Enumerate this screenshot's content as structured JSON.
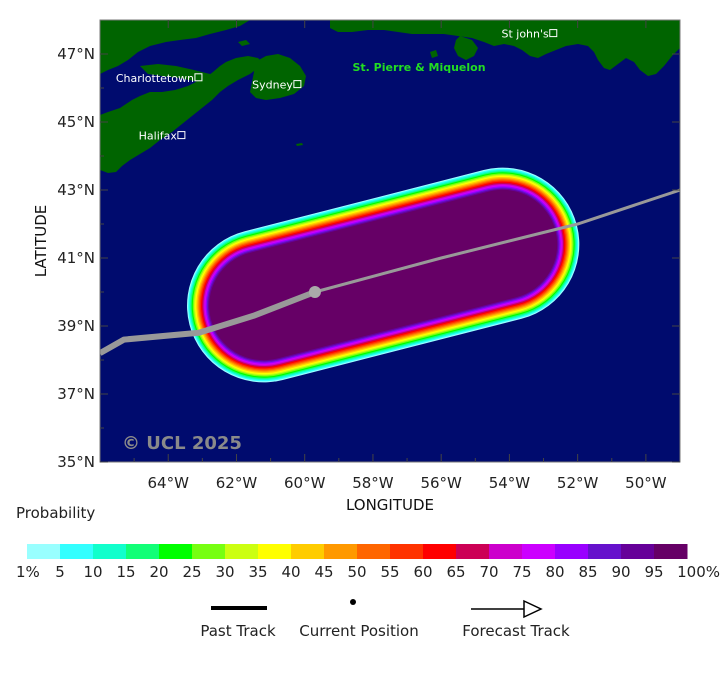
{
  "map": {
    "lon_range": [
      -66.0,
      -49.0
    ],
    "lat_range": [
      35.0,
      48.0
    ],
    "xlabel": "LONGITUDE",
    "ylabel": "LATITUDE",
    "watermark": "© UCL 2025",
    "ocean_color": "#000b6e",
    "land_color": "#006400",
    "lon_ticks": [
      {
        "value": -64,
        "label": "64°W"
      },
      {
        "value": -62,
        "label": "62°W"
      },
      {
        "value": -60,
        "label": "60°W"
      },
      {
        "value": -58,
        "label": "58°W"
      },
      {
        "value": -56,
        "label": "56°W"
      },
      {
        "value": -54,
        "label": "54°W"
      },
      {
        "value": -52,
        "label": "52°W"
      },
      {
        "value": -50,
        "label": "50°W"
      }
    ],
    "lat_ticks": [
      {
        "value": 35,
        "label": "35°N"
      },
      {
        "value": 37,
        "label": "37°N"
      },
      {
        "value": 39,
        "label": "39°N"
      },
      {
        "value": 41,
        "label": "41°N"
      },
      {
        "value": 43,
        "label": "43°N"
      },
      {
        "value": 45,
        "label": "45°N"
      },
      {
        "value": 47,
        "label": "47°N"
      }
    ],
    "cities": [
      {
        "name": "Charlottetown",
        "lon": -63.1,
        "lat": 46.3
      },
      {
        "name": "Sydney",
        "lon": -60.2,
        "lat": 46.1
      },
      {
        "name": "Halifax",
        "lon": -63.6,
        "lat": 44.6
      },
      {
        "name": "St john's",
        "lon": -52.7,
        "lat": 47.6
      }
    ],
    "regions": [
      {
        "name": "St. Pierre & Miquelon",
        "lon": -58.6,
        "lat": 46.5
      }
    ]
  },
  "storm": {
    "current_position": {
      "lon": -59.7,
      "lat": 40.0
    },
    "past_track": [
      {
        "lon": -66.0,
        "lat": 38.2
      },
      {
        "lon": -65.3,
        "lat": 38.6
      },
      {
        "lon": -63.1,
        "lat": 38.8
      },
      {
        "lon": -61.5,
        "lat": 39.3
      },
      {
        "lon": -59.7,
        "lat": 40.0
      }
    ],
    "forecast_track": [
      {
        "lon": -59.7,
        "lat": 40.0
      },
      {
        "lon": -56.0,
        "lat": 41.0
      },
      {
        "lon": -52.0,
        "lat": 42.0
      },
      {
        "lon": -49.0,
        "lat": 43.0
      }
    ],
    "probability_swath": {
      "axis_start": {
        "lon": -61.2,
        "lat": 39.6
      },
      "axis_end": {
        "lon": -54.2,
        "lat": 41.4
      },
      "inner_radius_deg": 1.6,
      "outer_radius_deg": 2.25
    }
  },
  "legend": {
    "title": "Probability",
    "levels": [
      "1%",
      "5",
      "10",
      "15",
      "20",
      "25",
      "30",
      "35",
      "40",
      "45",
      "50",
      "55",
      "60",
      "65",
      "70",
      "75",
      "80",
      "85",
      "90",
      "95",
      "100%"
    ],
    "colors": [
      "#99ffff",
      "#33ffff",
      "#11ffcc",
      "#11ff77",
      "#00ff00",
      "#77ff11",
      "#ccff11",
      "#ffff00",
      "#ffcc00",
      "#ff9900",
      "#ff6600",
      "#ff3300",
      "#ff0000",
      "#cc0055",
      "#cc00cc",
      "#cc00ff",
      "#9900ff",
      "#6611cc",
      "#660099",
      "#660066"
    ],
    "items": [
      {
        "label": "Past Track",
        "symbol": "line"
      },
      {
        "label": "Current Position",
        "symbol": "dot"
      },
      {
        "label": "Forecast Track",
        "symbol": "arrow"
      }
    ]
  }
}
